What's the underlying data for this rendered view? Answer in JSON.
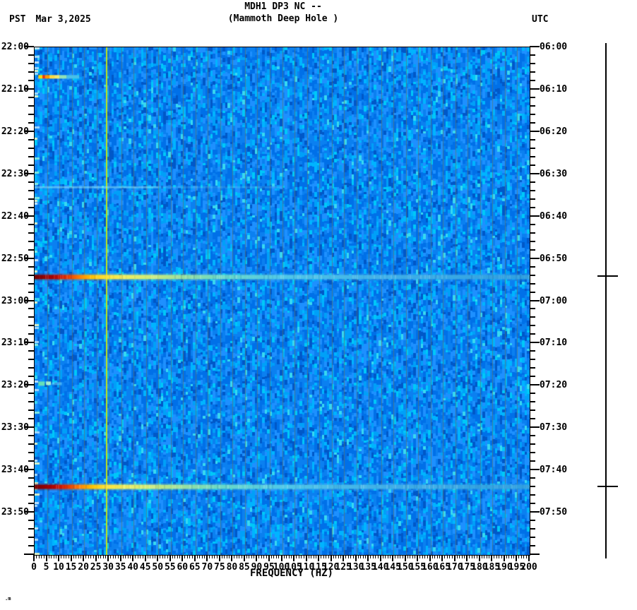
{
  "header": {
    "title_line1": "MDH1 DP3 NC --",
    "title_line2": "(Mammoth Deep Hole )",
    "tz_left": "PST",
    "date": "Mar 3,2025",
    "tz_right": "UTC"
  },
  "footer_glyph": ".m",
  "chart_data": {
    "type": "heatmap",
    "title": "MDH1 DP3 NC -- (Mammoth Deep Hole ) seismic spectrogram",
    "xlabel": "FREQUENCY (HZ)",
    "x_range_hz": [
      0,
      200
    ],
    "x_major_tick_step_hz": 5,
    "x_minor_tick_step_hz": 1,
    "x_tick_labels": [
      "0",
      "5",
      "10",
      "15",
      "20",
      "25",
      "30",
      "35",
      "40",
      "45",
      "50",
      "55",
      "60",
      "65",
      "70",
      "75",
      "80",
      "85",
      "90",
      "95",
      "100",
      "105",
      "110",
      "115",
      "120",
      "125",
      "130",
      "135",
      "140",
      "145",
      "150",
      "155",
      "160",
      "165",
      "170",
      "175",
      "180",
      "185",
      "190",
      "195",
      "200"
    ],
    "time_start_pst": "22:00",
    "time_end_pst": "24:00",
    "time_span_min": 120,
    "time_minor_tick_min": 2,
    "time_major_tick_min": 10,
    "left_time_labels": [
      "22:00",
      "22:10",
      "22:20",
      "22:30",
      "22:40",
      "22:50",
      "23:00",
      "23:10",
      "23:20",
      "23:30",
      "23:40",
      "23:50"
    ],
    "right_time_labels": [
      "06:00",
      "06:10",
      "06:20",
      "06:30",
      "06:40",
      "06:50",
      "07:00",
      "07:10",
      "07:20",
      "07:30",
      "07:40",
      "07:50"
    ],
    "grid": {
      "step_hz": 5,
      "color": "rgba(115,115,75,0.55)"
    },
    "palette": {
      "colors": [
        "#0058c8",
        "#0070e8",
        "#0b80f0",
        "#1e90ff",
        "#00a0f8",
        "#00b4ff",
        "#00c8f8",
        "#38d8f0"
      ],
      "weights": [
        0.09,
        0.26,
        0.22,
        0.17,
        0.12,
        0.08,
        0.04,
        0.02
      ]
    },
    "left_band_fleck_colors": [
      "#bfe4ff",
      "#9fd8ff",
      "#7fe8e0",
      "#d8f0c8"
    ],
    "tone_line": {
      "freq_hz": 29.2,
      "color": "#c2e414"
    },
    "broadband_gradient": [
      [
        0.0,
        "#780000"
      ],
      [
        0.015,
        "#8b0000"
      ],
      [
        0.035,
        "#aa0000"
      ],
      [
        0.055,
        "#d01800"
      ],
      [
        0.075,
        "#f05000"
      ],
      [
        0.095,
        "#ff8c00"
      ],
      [
        0.115,
        "#ffc000"
      ],
      [
        0.14,
        "#ffe030"
      ],
      [
        0.18,
        "#f0ee60"
      ],
      [
        0.23,
        "#d0ec78"
      ],
      [
        0.3,
        "#98e0a0"
      ],
      [
        0.38,
        "#68d8c8"
      ],
      [
        0.5,
        "#50c8e8"
      ],
      [
        0.7,
        "#40b0e8"
      ],
      [
        1.0,
        "#30a0e0"
      ]
    ],
    "small_event_segments": [
      [
        3.2,
        "#ffd800"
      ],
      [
        4.2,
        "#ff3000"
      ],
      [
        6.0,
        "#ff9800"
      ],
      [
        8.0,
        "#ffd840"
      ],
      [
        10.0,
        "#f0e870"
      ],
      [
        13.0,
        "#90e0b8"
      ],
      [
        18.0,
        "#48c0e8"
      ]
    ],
    "events": [
      {
        "label_pst": "22:07",
        "minute": 6.9,
        "kind": "small",
        "freq_extent_hz": [
          1.5,
          18
        ],
        "marker": false
      },
      {
        "label_pst": "22:33",
        "minute": 33.0,
        "kind": "faint-line",
        "freq_extent_hz": [
          0,
          100
        ],
        "marker": false
      },
      {
        "label_pst": "22:54",
        "minute": 54.3,
        "kind": "broadband",
        "freq_extent_hz": [
          0,
          200
        ],
        "marker": true
      },
      {
        "label_pst": "23:20",
        "minute": 79.5,
        "kind": "lowfreq-blob",
        "freq_extent_hz": [
          1,
          11
        ],
        "marker": false
      },
      {
        "label_pst": "23:44",
        "minute": 103.9,
        "kind": "broadband",
        "freq_extent_hz": [
          0,
          200
        ],
        "marker": true
      }
    ],
    "event_marker_bar_color": "#000000"
  }
}
